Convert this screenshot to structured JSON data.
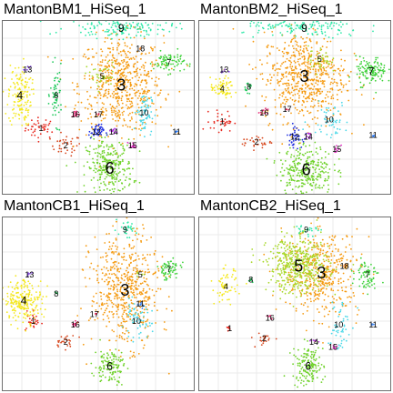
{
  "chart_data": [
    {
      "type": "scatter",
      "title": "MantonBM1_HiSeq_1",
      "grid": true,
      "xlim": [
        0,
        100
      ],
      "ylim": [
        0,
        100
      ],
      "clusters": [
        {
          "label": "1",
          "color": "#e8281e",
          "x": 20,
          "y": 38,
          "sx": 4,
          "sy": 3,
          "n": 40
        },
        {
          "label": "2",
          "color": "#d8481e",
          "x": 33,
          "y": 28,
          "sx": 4,
          "sy": 3,
          "n": 35
        },
        {
          "label": "3",
          "color": "#f59a10",
          "x": 62,
          "y": 63,
          "sx": 11,
          "sy": 14,
          "n": 600
        },
        {
          "label": "4",
          "color": "#f4e81e",
          "x": 9,
          "y": 57,
          "sx": 3,
          "sy": 9,
          "n": 150
        },
        {
          "label": "5",
          "color": "#a8d82a",
          "x": 52,
          "y": 68,
          "sx": 4,
          "sy": 4,
          "n": 40
        },
        {
          "label": "6",
          "color": "#6fd22a",
          "x": 56,
          "y": 15,
          "sx": 6,
          "sy": 8,
          "n": 280
        },
        {
          "label": "7",
          "color": "#3ed23a",
          "x": 87,
          "y": 76,
          "sx": 4,
          "sy": 3,
          "n": 80
        },
        {
          "label": "8",
          "color": "#1ec85a",
          "x": 28,
          "y": 57,
          "sx": 1.5,
          "sy": 8,
          "n": 60
        },
        {
          "label": "9",
          "color": "#2ee8a8",
          "x": 62,
          "y": 96,
          "sx": 14,
          "sy": 3,
          "n": 150
        },
        {
          "label": "10",
          "color": "#4ad8e8",
          "x": 74,
          "y": 47,
          "sx": 2,
          "sy": 6,
          "n": 70
        },
        {
          "label": "11",
          "color": "#2e7af0",
          "x": 91,
          "y": 36,
          "sx": 0.6,
          "sy": 0.8,
          "n": 6
        },
        {
          "label": "12",
          "color": "#1e2ee0",
          "x": 49,
          "y": 36,
          "sx": 2,
          "sy": 2,
          "n": 45
        },
        {
          "label": "13",
          "color": "#7a3ae0",
          "x": 13,
          "y": 72,
          "sx": 0.8,
          "sy": 0.8,
          "n": 6
        },
        {
          "label": "14",
          "color": "#b02ee0",
          "x": 58,
          "y": 36,
          "sx": 1,
          "sy": 1,
          "n": 12
        },
        {
          "label": "15",
          "color": "#e82ec8",
          "x": 68,
          "y": 28,
          "sx": 1,
          "sy": 1,
          "n": 12
        },
        {
          "label": "16",
          "color": "#e82e78",
          "x": 38,
          "y": 46,
          "sx": 1,
          "sy": 1,
          "n": 15
        },
        {
          "label": "17",
          "color": "#d81e4a",
          "x": 50,
          "y": 46,
          "sx": 0.5,
          "sy": 0.5,
          "n": 4
        },
        {
          "label": "18",
          "color": "#f08a3a",
          "x": 72,
          "y": 84,
          "sx": 0.5,
          "sy": 0.5,
          "n": 3
        }
      ]
    },
    {
      "type": "scatter",
      "title": "MantonBM2_HiSeq_1",
      "grid": true,
      "xlim": [
        0,
        100
      ],
      "ylim": [
        0,
        100
      ],
      "clusters": [
        {
          "label": "1",
          "color": "#e8281e",
          "x": 12,
          "y": 42,
          "sx": 3,
          "sy": 3,
          "n": 35
        },
        {
          "label": "2",
          "color": "#d8481e",
          "x": 30,
          "y": 30,
          "sx": 4,
          "sy": 2,
          "n": 30
        },
        {
          "label": "3",
          "color": "#f59a10",
          "x": 55,
          "y": 68,
          "sx": 11,
          "sy": 13,
          "n": 600
        },
        {
          "label": "4",
          "color": "#f4e81e",
          "x": 12,
          "y": 61,
          "sx": 3,
          "sy": 3,
          "n": 70
        },
        {
          "label": "5",
          "color": "#a8d82a",
          "x": 63,
          "y": 78,
          "sx": 3,
          "sy": 4,
          "n": 40
        },
        {
          "label": "6",
          "color": "#6fd22a",
          "x": 56,
          "y": 14,
          "sx": 7,
          "sy": 7,
          "n": 280
        },
        {
          "label": "7",
          "color": "#3ed23a",
          "x": 90,
          "y": 71,
          "sx": 4,
          "sy": 4,
          "n": 120
        },
        {
          "label": "8",
          "color": "#1ec85a",
          "x": 26,
          "y": 62,
          "sx": 1,
          "sy": 1.5,
          "n": 15
        },
        {
          "label": "9",
          "color": "#2ee8a8",
          "x": 55,
          "y": 96,
          "sx": 16,
          "sy": 3,
          "n": 150
        },
        {
          "label": "10",
          "color": "#4ad8e8",
          "x": 68,
          "y": 43,
          "sx": 5,
          "sy": 5,
          "n": 50
        },
        {
          "label": "11",
          "color": "#2e7af0",
          "x": 91,
          "y": 34,
          "sx": 0.6,
          "sy": 0.8,
          "n": 6
        },
        {
          "label": "12",
          "color": "#1e2ee0",
          "x": 50,
          "y": 33,
          "sx": 2,
          "sy": 3,
          "n": 40
        },
        {
          "label": "13",
          "color": "#7a3ae0",
          "x": 13,
          "y": 72,
          "sx": 0.8,
          "sy": 0.8,
          "n": 5
        },
        {
          "label": "14",
          "color": "#b02ee0",
          "x": 57,
          "y": 33,
          "sx": 1,
          "sy": 1,
          "n": 10
        },
        {
          "label": "15",
          "color": "#e82ec8",
          "x": 72,
          "y": 26,
          "sx": 1,
          "sy": 1,
          "n": 10
        },
        {
          "label": "16",
          "color": "#e82e78",
          "x": 34,
          "y": 47,
          "sx": 1,
          "sy": 1,
          "n": 12
        },
        {
          "label": "17",
          "color": "#d81e4a",
          "x": 46,
          "y": 49,
          "sx": 0.5,
          "sy": 0.5,
          "n": 4
        }
      ]
    },
    {
      "type": "scatter",
      "title": "MantonCB1_HiSeq_1",
      "grid": true,
      "xlim": [
        0,
        100
      ],
      "ylim": [
        0,
        100
      ],
      "clusters": [
        {
          "label": "1",
          "color": "#e8281e",
          "x": 16,
          "y": 40,
          "sx": 2,
          "sy": 3,
          "n": 25
        },
        {
          "label": "2",
          "color": "#d8481e",
          "x": 33,
          "y": 28,
          "sx": 3,
          "sy": 2,
          "n": 25
        },
        {
          "label": "3",
          "color": "#f59a10",
          "x": 64,
          "y": 58,
          "sx": 9,
          "sy": 16,
          "n": 550
        },
        {
          "label": "4",
          "color": "#f4e81e",
          "x": 11,
          "y": 52,
          "sx": 5,
          "sy": 6,
          "n": 220
        },
        {
          "label": "5",
          "color": "#a8d82a",
          "x": 72,
          "y": 67,
          "sx": 1,
          "sy": 1,
          "n": 6
        },
        {
          "label": "6",
          "color": "#6fd22a",
          "x": 56,
          "y": 14,
          "sx": 4,
          "sy": 5,
          "n": 120
        },
        {
          "label": "7",
          "color": "#3ed23a",
          "x": 87,
          "y": 70,
          "sx": 3,
          "sy": 3,
          "n": 60
        },
        {
          "label": "8",
          "color": "#1ec85a",
          "x": 28,
          "y": 56,
          "sx": 0.8,
          "sy": 0.8,
          "n": 4
        },
        {
          "label": "9",
          "color": "#2ee8a8",
          "x": 64,
          "y": 93,
          "sx": 3,
          "sy": 2,
          "n": 30
        },
        {
          "label": "10",
          "color": "#4ad8e8",
          "x": 70,
          "y": 40,
          "sx": 4,
          "sy": 5,
          "n": 60
        },
        {
          "label": "11",
          "color": "#2e7af0",
          "x": 72,
          "y": 50,
          "sx": 1,
          "sy": 1,
          "n": 6
        },
        {
          "label": "13",
          "color": "#7a3ae0",
          "x": 14,
          "y": 67,
          "sx": 0.8,
          "sy": 0.8,
          "n": 5
        },
        {
          "label": "16",
          "color": "#e82e78",
          "x": 38,
          "y": 38,
          "sx": 1,
          "sy": 1,
          "n": 12
        },
        {
          "label": "17",
          "color": "#d81e4a",
          "x": 48,
          "y": 44,
          "sx": 0.5,
          "sy": 0.5,
          "n": 4
        }
      ]
    },
    {
      "type": "scatter",
      "title": "MantonCB2_HiSeq_1",
      "grid": true,
      "xlim": [
        0,
        100
      ],
      "ylim": [
        0,
        100
      ],
      "clusters": [
        {
          "label": "1",
          "color": "#e8281e",
          "x": 16,
          "y": 36,
          "sx": 1,
          "sy": 1,
          "n": 6
        },
        {
          "label": "2",
          "color": "#d8481e",
          "x": 34,
          "y": 30,
          "sx": 3,
          "sy": 2,
          "n": 20
        },
        {
          "label": "3",
          "color": "#f59a10",
          "x": 64,
          "y": 68,
          "sx": 10,
          "sy": 12,
          "n": 450
        },
        {
          "label": "4",
          "color": "#f4e81e",
          "x": 14,
          "y": 60,
          "sx": 3,
          "sy": 5,
          "n": 60
        },
        {
          "label": "5",
          "color": "#a8d82a",
          "x": 52,
          "y": 72,
          "sx": 8,
          "sy": 8,
          "n": 450
        },
        {
          "label": "6",
          "color": "#6fd22a",
          "x": 57,
          "y": 14,
          "sx": 4,
          "sy": 6,
          "n": 150
        },
        {
          "label": "7",
          "color": "#3ed23a",
          "x": 88,
          "y": 67,
          "sx": 3,
          "sy": 4,
          "n": 70
        },
        {
          "label": "8",
          "color": "#1ec85a",
          "x": 27,
          "y": 64,
          "sx": 1,
          "sy": 1,
          "n": 5
        },
        {
          "label": "9",
          "color": "#2ee8a8",
          "x": 56,
          "y": 93,
          "sx": 3,
          "sy": 2,
          "n": 25
        },
        {
          "label": "10",
          "color": "#4ad8e8",
          "x": 73,
          "y": 38,
          "sx": 3,
          "sy": 8,
          "n": 50
        },
        {
          "label": "11",
          "color": "#2e7af0",
          "x": 91,
          "y": 38,
          "sx": 0.5,
          "sy": 0.5,
          "n": 3
        },
        {
          "label": "14",
          "color": "#b02ee0",
          "x": 60,
          "y": 28,
          "sx": 1,
          "sy": 1,
          "n": 6
        },
        {
          "label": "15",
          "color": "#e82ec8",
          "x": 70,
          "y": 25,
          "sx": 1,
          "sy": 1,
          "n": 8
        },
        {
          "label": "16",
          "color": "#e82e78",
          "x": 37,
          "y": 42,
          "sx": 1,
          "sy": 1,
          "n": 6
        },
        {
          "label": "18",
          "color": "#f08a3a",
          "x": 76,
          "y": 72,
          "sx": 0.5,
          "sy": 0.5,
          "n": 3
        }
      ]
    }
  ]
}
